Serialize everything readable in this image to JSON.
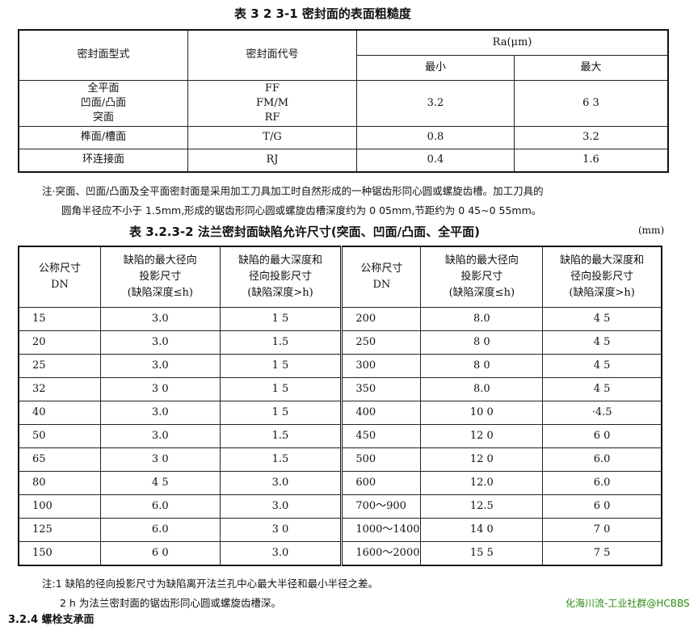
{
  "table1": {
    "title": "表 3 2 3-1  密封面的表面粗糙度",
    "headers": {
      "type": "密封面型式",
      "code": "密封面代号",
      "ra": "Ra(μm)",
      "min": "最小",
      "max": "最大"
    },
    "rows": [
      {
        "type": [
          "全平面",
          "凹面/凸面",
          "突面"
        ],
        "code": [
          "FF",
          "FM/M",
          "RF"
        ],
        "min": "3.2",
        "max": "6 3"
      },
      {
        "type": [
          "榫面/槽面"
        ],
        "code": [
          "T/G"
        ],
        "min": "0.8",
        "max": "3.2"
      },
      {
        "type": [
          "环连接面"
        ],
        "code": [
          "RJ"
        ],
        "min": "0.4",
        "max": "1.6"
      }
    ],
    "note": [
      "注·突面、凹面/凸面及全平面密封面是采用加工刀具加工时自然形成的一种锯齿形同心圆或螺旋齿槽。加工刀具的",
      "圆角半径应不小于 1.5mm,形成的锯齿形同心圆或螺旋齿槽深度约为 0 05mm,节距约为 0 45~0 55mm。"
    ]
  },
  "table2": {
    "title": "表 3.2.3-2  法兰密封面缺陷允许尺寸(突面、凹面/凸面、全平面)",
    "unit": "(mm)",
    "headers": [
      [
        "公称尺寸",
        "DN"
      ],
      [
        "缺陷的最大径向",
        "投影尺寸",
        "(缺陷深度≤h)"
      ],
      [
        "缺陷的最大深度和",
        "径向投影尺寸",
        "(缺陷深度>h)"
      ],
      [
        "公称尺寸",
        "DN"
      ],
      [
        "缺陷的最大径向",
        "投影尺寸",
        "(缺陷深度≤h)"
      ],
      [
        "缺陷的最大深度和",
        "径向投影尺寸",
        "(缺陷深度>h)"
      ]
    ],
    "rows": [
      [
        "15",
        "3.0",
        "1 5",
        "200",
        "8.0",
        "4 5"
      ],
      [
        "20",
        "3.0",
        "1.5",
        "250",
        "8 0",
        "4 5"
      ],
      [
        "25",
        "3.0",
        "1 5",
        "300",
        "8 0",
        "4 5"
      ],
      [
        "32",
        "3 0",
        "1 5",
        "350",
        "8.0",
        "4 5"
      ],
      [
        "40",
        "3.0",
        "1 5",
        "400",
        "10 0",
        "·4.5"
      ],
      [
        "50",
        "3.0",
        "1.5",
        "450",
        "12 0",
        "6 0"
      ],
      [
        "65",
        "3 0",
        "1.5",
        "500",
        "12 0",
        "6.0"
      ],
      [
        "80",
        "4 5",
        "3.0",
        "600",
        "12.0",
        "6.0"
      ],
      [
        "100",
        "6.0",
        "3.0",
        "700～900",
        "12.5",
        "6 0"
      ],
      [
        "125",
        "6.0",
        "3 0",
        "1000～1400",
        "14 0",
        "7 0"
      ],
      [
        "150",
        "6 0",
        "3.0",
        "1600～2000",
        "15 5",
        "7 5"
      ]
    ],
    "notes": [
      "注:1  缺陷的径向投影尺寸为缺陷离开法兰孔中心最大半径和最小半径之差。",
      "2  h 为法兰密封面的锯齿形同心圆或螺旋齿槽深。"
    ]
  },
  "next_heading": "3.2.4  螺栓支承面",
  "watermark": "化海川流-工业社群@HCBBS",
  "colors": {
    "watermark": "#2a8a10"
  }
}
